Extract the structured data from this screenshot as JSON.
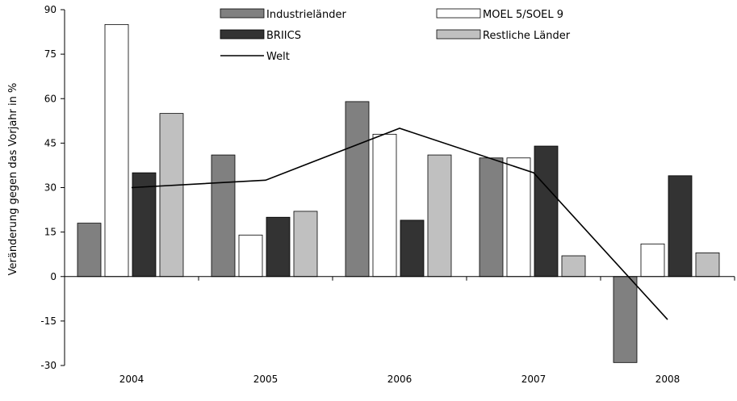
{
  "chart_data": {
    "type": "bar",
    "categories": [
      "2004",
      "2005",
      "2006",
      "2007",
      "2008"
    ],
    "ylabel": "Veränderung gegen das Vorjahr in %",
    "ylim": [
      -30,
      90
    ],
    "yticks": [
      -30,
      -15,
      0,
      15,
      30,
      45,
      60,
      75,
      90
    ],
    "grid": false,
    "legend_position": "top",
    "series": [
      {
        "name": "Industrieländer",
        "kind": "bar",
        "color": "#808080",
        "values": [
          18,
          41,
          59,
          40,
          -29
        ]
      },
      {
        "name": "MOEL 5/SOEL 9",
        "kind": "bar",
        "color": "#ffffff",
        "values": [
          85,
          14,
          48,
          40,
          11
        ]
      },
      {
        "name": "BRIICS",
        "kind": "bar",
        "color": "#333333",
        "values": [
          35,
          20,
          19,
          44,
          34
        ]
      },
      {
        "name": "Restliche Länder",
        "kind": "bar",
        "color": "#c0c0c0",
        "values": [
          55,
          22,
          41,
          7,
          8
        ]
      },
      {
        "name": "Welt",
        "kind": "line",
        "color": "#000000",
        "values": [
          30,
          32.5,
          50,
          35,
          -14.5
        ]
      }
    ]
  }
}
